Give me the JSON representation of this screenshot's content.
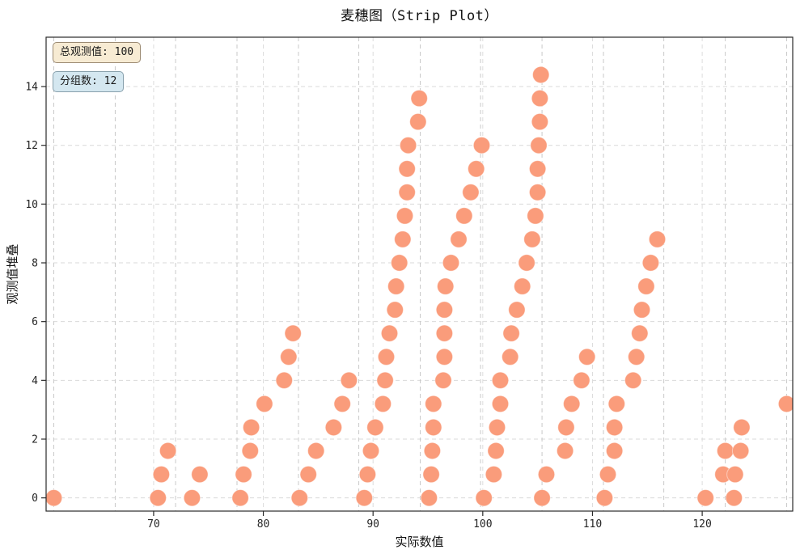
{
  "title": "麦穗图（Strip Plot）",
  "annotations": {
    "total": {
      "label": "总观测值: 100",
      "bg": "#f7ebd3",
      "border": "#9c8b73"
    },
    "groups": {
      "label": "分组数: 12",
      "bg": "#d4e7f0",
      "border": "#88a0ac"
    }
  },
  "chart_data": {
    "type": "scatter",
    "subtype": "wheat-strip-plot",
    "title": "麦穗图（Strip Plot）",
    "xlabel": "实际数值",
    "ylabel": "观测值堆叠",
    "total_observations": 100,
    "group_count": 12,
    "stack_step": 0.8,
    "dot_color": "#fa9c7b",
    "dot_radius_px": 10.2,
    "grid": true,
    "x_ticks": [
      70,
      80,
      90,
      100,
      110,
      120
    ],
    "y_ticks": [
      0,
      2,
      4,
      6,
      8,
      10,
      12,
      14
    ],
    "xlim": [
      60.2,
      128.25
    ],
    "ylim": [
      -0.45,
      15.68
    ],
    "bin_edges": [
      60.9,
      66.5,
      72.0,
      77.6,
      83.2,
      88.7,
      94.3,
      99.8,
      105.4,
      111.0,
      116.5,
      122.1,
      127.7
    ],
    "groups": [
      [
        60.9
      ],
      [
        70.4,
        70.7,
        71.3
      ],
      [
        73.5,
        74.2
      ],
      [
        77.9,
        78.2,
        78.8,
        78.9,
        80.1,
        81.9,
        82.3,
        82.7
      ],
      [
        83.3,
        84.1,
        84.8,
        86.4,
        87.2,
        87.8
      ],
      [
        89.2,
        89.5,
        89.8,
        90.2,
        90.9,
        91.1,
        91.2,
        91.5,
        92.0,
        92.1,
        92.4,
        92.7,
        92.9,
        93.1,
        93.1,
        93.2,
        94.1,
        94.2
      ],
      [
        95.1,
        95.3,
        95.4,
        95.5,
        95.5,
        96.4,
        96.5,
        96.5,
        96.5,
        96.6,
        97.1,
        97.8,
        98.3,
        98.9,
        99.4,
        99.9
      ],
      [
        100.1,
        101.0,
        101.2,
        101.3,
        101.6,
        101.6,
        102.5,
        102.6,
        103.1,
        103.6,
        104.0,
        104.5,
        104.8,
        105.0,
        105.0,
        105.1,
        105.2,
        105.2,
        105.3
      ],
      [
        105.4,
        105.8,
        107.5,
        107.6,
        108.1,
        109.0,
        109.5
      ],
      [
        111.1,
        111.4,
        112.0,
        112.0,
        112.2,
        113.7,
        114.0,
        114.3,
        114.5,
        114.9,
        115.3,
        115.9
      ],
      [
        120.3,
        121.9,
        122.1
      ],
      [
        122.9,
        123.0,
        123.5,
        123.6,
        127.7
      ]
    ]
  }
}
